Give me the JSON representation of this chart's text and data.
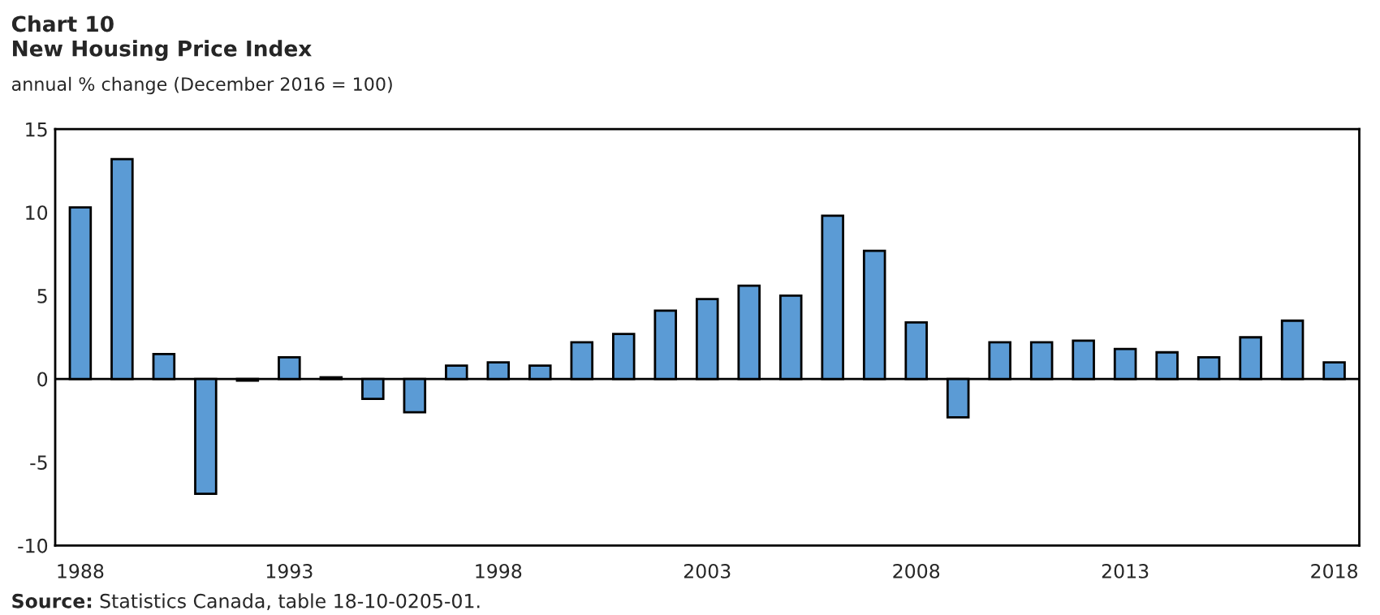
{
  "chart_data": {
    "type": "bar",
    "title": "Chart 10",
    "subtitle": "New Housing Price Index",
    "ylabel": "annual % change (December 2016 = 100)",
    "categories": [
      "1988",
      null,
      null,
      null,
      null,
      "1993",
      null,
      null,
      null,
      null,
      "1998",
      null,
      null,
      null,
      null,
      "2003",
      null,
      null,
      null,
      null,
      "2008",
      null,
      null,
      null,
      null,
      "2013",
      null,
      null,
      null,
      null,
      "2018"
    ],
    "values": [
      10.3,
      13.2,
      1.5,
      -6.9,
      -0.1,
      1.3,
      0.1,
      -1.2,
      -2.0,
      0.8,
      1.0,
      0.8,
      2.2,
      2.7,
      4.1,
      4.8,
      5.6,
      5.0,
      9.8,
      7.7,
      3.4,
      -2.3,
      2.2,
      2.2,
      2.3,
      1.8,
      1.6,
      1.3,
      2.5,
      3.5,
      1.0
    ],
    "color": "#5b9bd5",
    "ylim": [
      -10,
      15
    ],
    "yticks": [
      -10,
      -5,
      0,
      5,
      10,
      15
    ],
    "grid": false,
    "legend": false,
    "ref_lines": [
      {
        "axis": "y",
        "value": 0,
        "color": "#000000"
      }
    ],
    "annotations": [
      "Source: Statistics Canada, table 18-10-0205-01."
    ]
  }
}
